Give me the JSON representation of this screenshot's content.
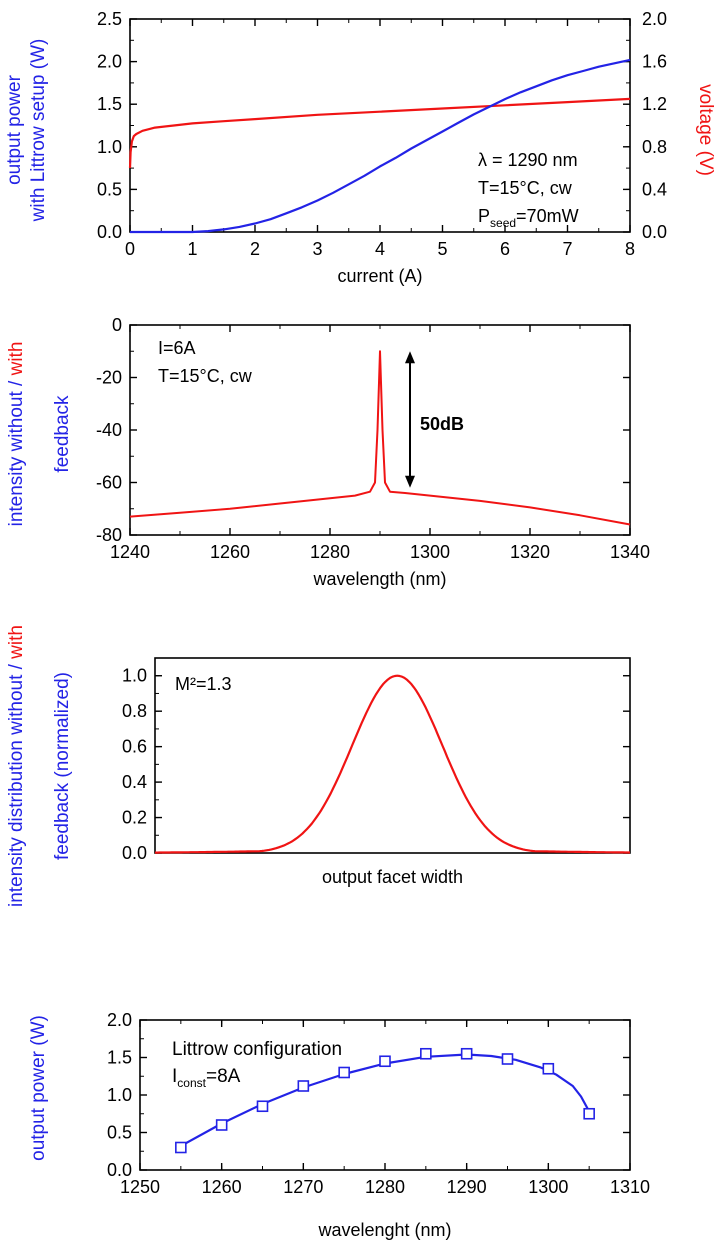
{
  "colors": {
    "blue": "#2323e6",
    "red": "#f01414",
    "axis": "#000000"
  },
  "chart_data": [
    {
      "id": "p1",
      "type": "line",
      "xlabel": "current (A)",
      "xlim": [
        0,
        8
      ],
      "xticks": [
        0,
        1,
        2,
        3,
        4,
        5,
        6,
        7,
        8
      ],
      "ylabel_left_lines": [
        "output power",
        "with Littrow setup (W)"
      ],
      "ylim_left": [
        0,
        2.5
      ],
      "yticks_left": [
        0.0,
        0.5,
        1.0,
        1.5,
        2.0,
        2.5
      ],
      "ylabel_right": "voltage (V)",
      "ylim_right": [
        0,
        2.0
      ],
      "yticks_right": [
        0.0,
        0.4,
        0.8,
        1.2,
        1.6,
        2.0
      ],
      "annotations": {
        "line1": "λ = 1290 nm",
        "line2": "T=15°C, cw",
        "p_main": "P",
        "p_sub": "seed",
        "p_rest": "=70mW"
      },
      "series": [
        {
          "axis": "left",
          "color": "blue",
          "x": [
            0,
            0.5,
            1.0,
            1.25,
            1.5,
            1.75,
            2.0,
            2.25,
            2.5,
            2.75,
            3.0,
            3.25,
            3.5,
            3.75,
            4.0,
            4.25,
            4.5,
            4.75,
            5.0,
            5.25,
            5.5,
            5.75,
            6.0,
            6.25,
            6.5,
            6.75,
            7.0,
            7.25,
            7.5,
            7.75,
            8.0
          ],
          "y": [
            0,
            0,
            0,
            0.01,
            0.03,
            0.06,
            0.1,
            0.15,
            0.22,
            0.29,
            0.37,
            0.46,
            0.56,
            0.66,
            0.77,
            0.87,
            0.98,
            1.08,
            1.18,
            1.28,
            1.38,
            1.47,
            1.56,
            1.64,
            1.71,
            1.78,
            1.84,
            1.89,
            1.94,
            1.98,
            2.02
          ]
        },
        {
          "axis": "right",
          "color": "red",
          "x": [
            0,
            0.01,
            0.03,
            0.06,
            0.1,
            0.2,
            0.4,
            0.7,
            1.0,
            1.5,
            2.0,
            3.0,
            4.0,
            5.0,
            6.0,
            7.0,
            8.0
          ],
          "y": [
            0.6,
            0.75,
            0.85,
            0.9,
            0.92,
            0.95,
            0.98,
            1.0,
            1.02,
            1.04,
            1.06,
            1.1,
            1.13,
            1.16,
            1.19,
            1.22,
            1.25
          ]
        }
      ]
    },
    {
      "id": "p2",
      "type": "line",
      "xlabel": "wavelength (nm)",
      "xlim": [
        1240,
        1340
      ],
      "xticks": [
        1240,
        1260,
        1280,
        1300,
        1320,
        1340
      ],
      "ylabel_lines": [
        "intensity without / ",
        "with",
        "feedback"
      ],
      "ylim": [
        -80,
        0
      ],
      "yticks": [
        -80,
        -60,
        -40,
        -20,
        0
      ],
      "annotations": {
        "line1": "I=6A",
        "line2": "T=15°C, cw",
        "arrow_label": "50dB"
      },
      "arrow_x": 1296,
      "arrow_y": [
        -10,
        -62
      ],
      "series": [
        {
          "color": "red",
          "x": [
            1240,
            1250,
            1260,
            1270,
            1280,
            1285,
            1288,
            1289,
            1289.5,
            1290,
            1290.5,
            1291,
            1292,
            1295,
            1300,
            1310,
            1320,
            1330,
            1340
          ],
          "y": [
            -73,
            -71.5,
            -70,
            -68,
            -66,
            -65,
            -63.5,
            -60,
            -40,
            -10,
            -40,
            -60,
            -63.5,
            -64,
            -65,
            -67,
            -69.5,
            -72.5,
            -76
          ]
        }
      ]
    },
    {
      "id": "p3",
      "type": "line",
      "xlabel": "output facet width",
      "ylabel_lines": [
        "intensity distribution without / ",
        "with",
        "feedback (normalized)"
      ],
      "ylim": [
        0,
        1.1
      ],
      "yticks": [
        0.0,
        0.2,
        0.4,
        0.6,
        0.8,
        1.0
      ],
      "annotations": {
        "m2": "M²=1.3"
      },
      "curve": {
        "center": 0.51,
        "sigma": 0.095,
        "baseline": 0.02,
        "color": "red"
      }
    },
    {
      "id": "p4",
      "type": "scatter",
      "xlabel": "wavelenght (nm)",
      "xlim": [
        1250,
        1310
      ],
      "xticks": [
        1250,
        1260,
        1270,
        1280,
        1290,
        1300,
        1310
      ],
      "ylabel": "output power (W)",
      "ylim": [
        0,
        2.0
      ],
      "yticks": [
        0.0,
        0.5,
        1.0,
        1.5,
        2.0
      ],
      "annotations": {
        "line1": "Littrow configuration",
        "i_main": "I",
        "i_sub": "const",
        "i_rest": "=8A"
      },
      "series": [
        {
          "color": "blue",
          "x": [
            1255,
            1260,
            1265,
            1270,
            1275,
            1280,
            1285,
            1290,
            1295,
            1300,
            1305
          ],
          "y": [
            0.3,
            0.6,
            0.85,
            1.12,
            1.3,
            1.45,
            1.55,
            1.55,
            1.48,
            1.35,
            0.75
          ]
        }
      ],
      "fit": {
        "color": "blue",
        "x": [
          1255,
          1260,
          1265,
          1270,
          1275,
          1280,
          1285,
          1290,
          1293,
          1296,
          1299,
          1301,
          1303,
          1304,
          1305
        ],
        "y": [
          0.32,
          0.62,
          0.88,
          1.1,
          1.28,
          1.42,
          1.51,
          1.54,
          1.52,
          1.47,
          1.37,
          1.27,
          1.12,
          0.98,
          0.78
        ]
      }
    }
  ]
}
